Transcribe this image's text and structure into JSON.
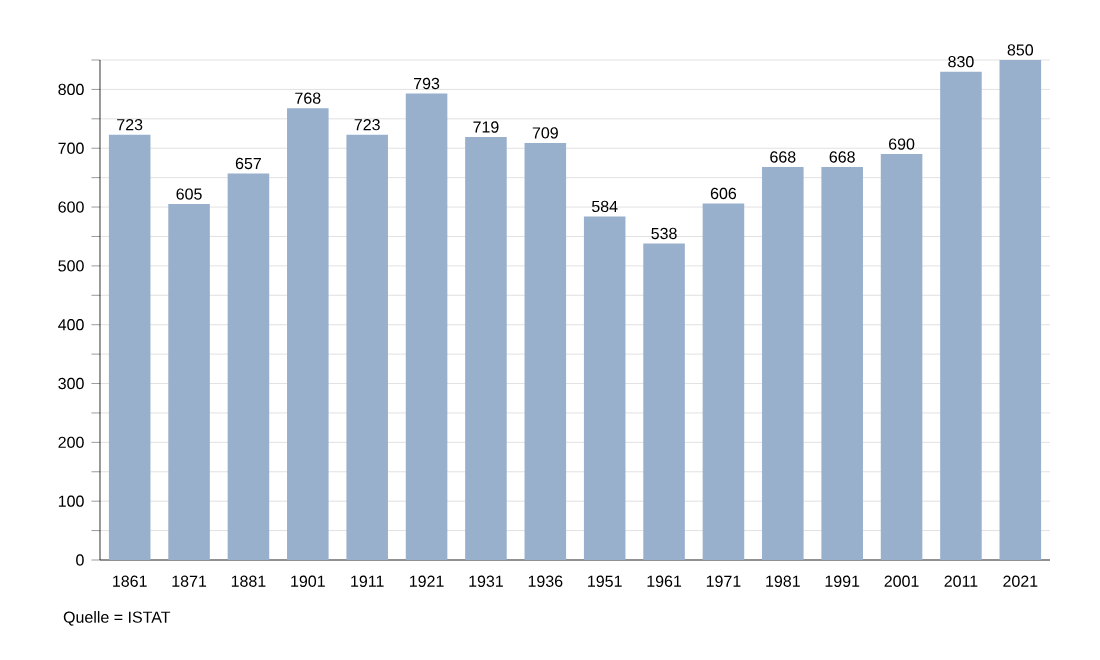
{
  "chart_data": {
    "type": "bar",
    "categories": [
      "1861",
      "1871",
      "1881",
      "1901",
      "1911",
      "1921",
      "1931",
      "1936",
      "1951",
      "1961",
      "1971",
      "1981",
      "1991",
      "2001",
      "2011",
      "2021"
    ],
    "values": [
      723,
      605,
      657,
      768,
      723,
      793,
      719,
      709,
      584,
      538,
      606,
      668,
      668,
      690,
      830,
      850
    ],
    "color": "#98b0cc",
    "ylim": [
      0,
      850
    ],
    "yticks": [
      0,
      {
        "value": 50,
        "label": null
      },
      100,
      {
        "value": 150,
        "label": null
      },
      200,
      {
        "value": 250,
        "label": null
      },
      300,
      {
        "value": 350,
        "label": null
      },
      400,
      {
        "value": 450,
        "label": null
      },
      500,
      {
        "value": 550,
        "label": null
      },
      600,
      {
        "value": 650,
        "label": null
      },
      700,
      {
        "value": 750,
        "label": null
      },
      800,
      {
        "value": 850,
        "label": null
      }
    ],
    "grid": "y",
    "data_labels": true,
    "annotations": [
      "Quelle = ISTAT"
    ]
  }
}
